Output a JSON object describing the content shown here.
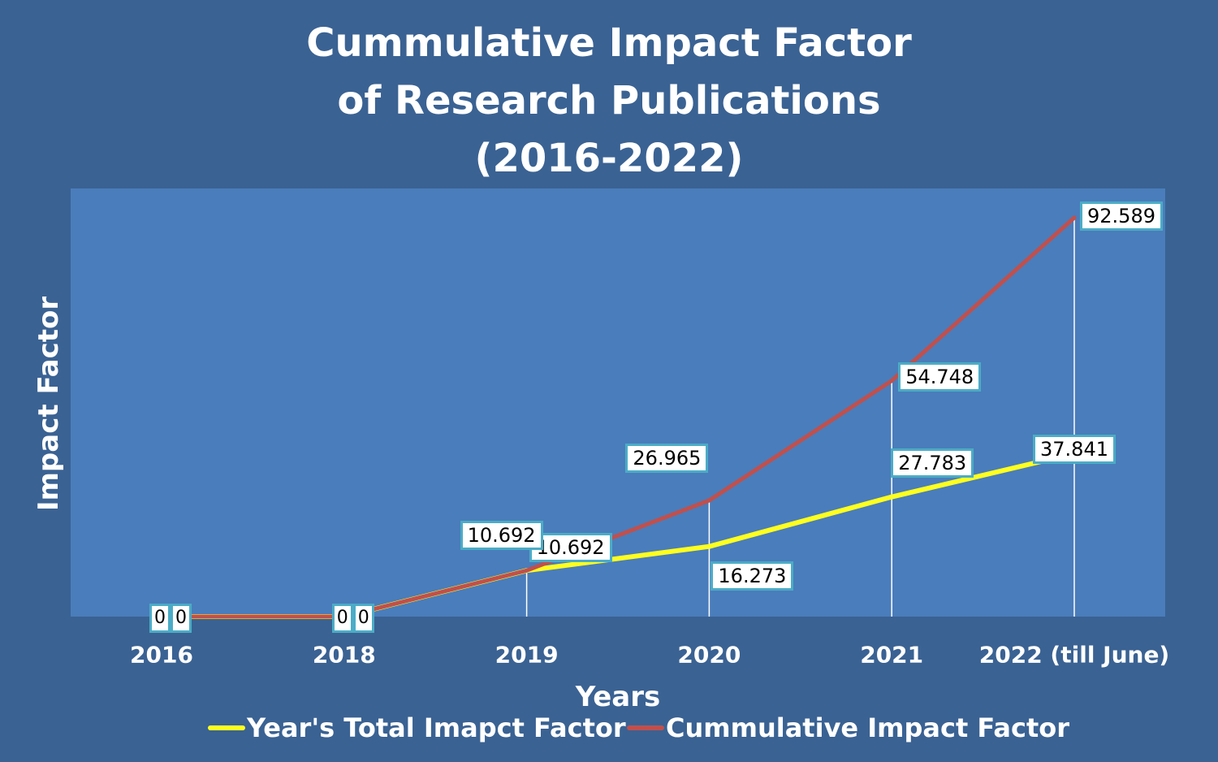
{
  "chart_data": {
    "type": "line",
    "title_lines": [
      "Cummulative Impact Factor",
      "of Research Publications",
      "(2016-2022)"
    ],
    "xlabel": "Years",
    "ylabel": "Impact Factor",
    "categories": [
      "2016",
      "2018",
      "2019",
      "2020",
      "2021",
      "2022 (till June)"
    ],
    "ylim": [
      0,
      100
    ],
    "grid": false,
    "legend_position": "bottom",
    "series": [
      {
        "name": "Year's Total Imapct Factor",
        "color": "#ffff1f",
        "values": [
          0,
          0,
          10.692,
          16.273,
          27.783,
          37.841
        ],
        "labels": [
          "0",
          "0",
          "10.692",
          "16.273",
          "27.783",
          "37.841"
        ]
      },
      {
        "name": "Cummulative Impact Factor",
        "color": "#c0504d",
        "values": [
          0,
          0,
          10.692,
          26.965,
          54.748,
          92.589
        ],
        "labels": [
          "0",
          "0",
          "10.692",
          "26.965",
          "54.748",
          "92.589"
        ]
      }
    ]
  }
}
